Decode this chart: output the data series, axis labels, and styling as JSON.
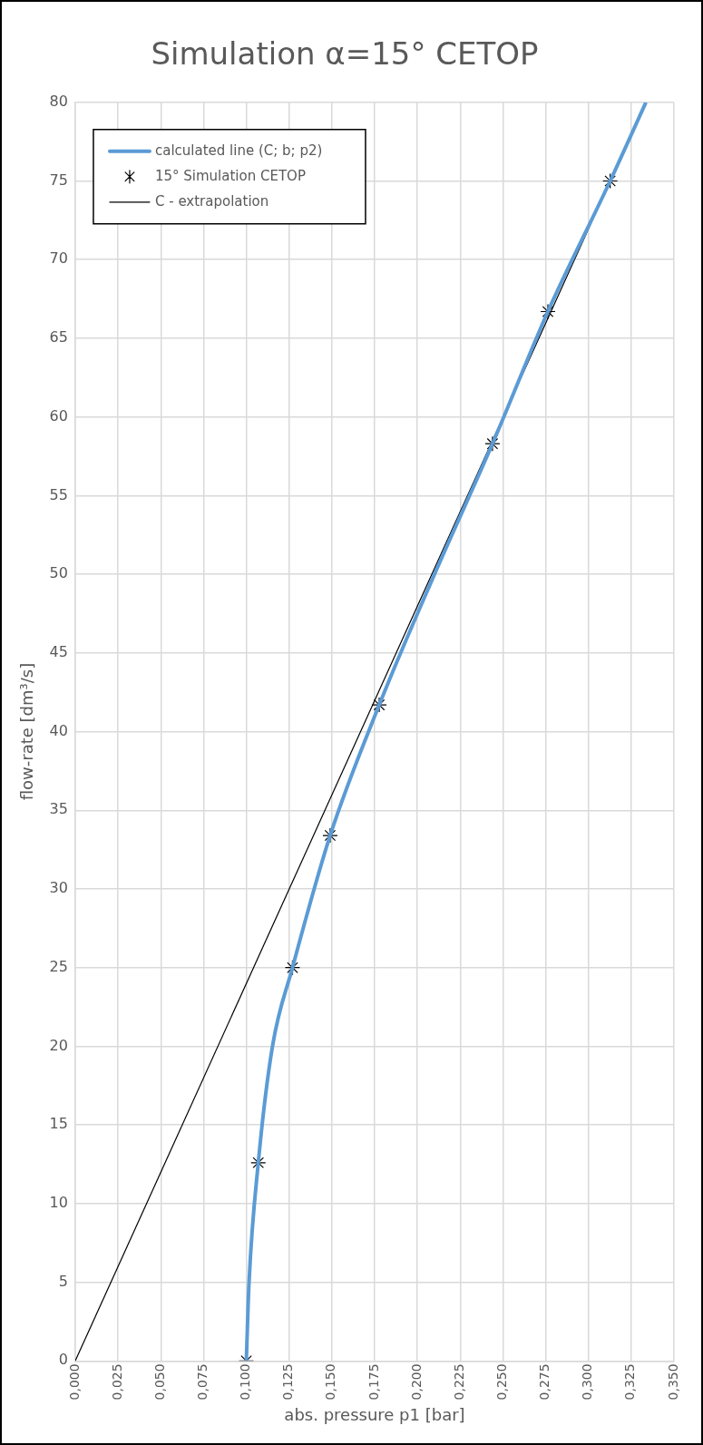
{
  "chart_data": {
    "type": "line",
    "title": "Simulation α=15° CETOP",
    "xlabel": "abs. pressure p1 [bar]",
    "ylabel": "flow-rate [dm³/s]",
    "series": [
      {
        "name": "calculated line (C; b; p2)",
        "type": "line",
        "color": "#5b9bd5",
        "marker": "none",
        "x": [
          0.1,
          0.1016,
          0.107,
          0.1153,
          0.127,
          0.149,
          0.1777,
          0.2096,
          0.2439,
          0.2763,
          0.3127,
          0.3336
        ],
        "values": [
          0,
          5.0,
          12.6,
          20.0,
          25.0,
          33.4,
          41.7,
          49.9,
          58.3,
          66.7,
          75.0,
          80
        ]
      },
      {
        "name": "15° Simulation CETOP",
        "type": "scatter",
        "color": "#000000",
        "marker": "cross",
        "x": [
          0.1,
          0.107,
          0.127,
          0.149,
          0.1777,
          0.2439,
          0.2763,
          0.3127
        ],
        "values": [
          0,
          12.6,
          25.0,
          33.4,
          41.7,
          58.3,
          66.7,
          75.0
        ]
      },
      {
        "name": "C - extrapolation",
        "type": "line",
        "color": "#000000",
        "marker": "none",
        "x": [
          0,
          0.3127
        ],
        "values": [
          0,
          75.0
        ]
      }
    ],
    "xlim": [
      0,
      0.35
    ],
    "ylim": [
      0,
      80
    ],
    "xticks": [
      {
        "value": 0,
        "label": "0,000"
      },
      {
        "value": 0.025,
        "label": "0,025"
      },
      {
        "value": 0.05,
        "label": "0,050"
      },
      {
        "value": 0.075,
        "label": "0,075"
      },
      {
        "value": 0.1,
        "label": "0,100"
      },
      {
        "value": 0.125,
        "label": "0,125"
      },
      {
        "value": 0.15,
        "label": "0,150"
      },
      {
        "value": 0.175,
        "label": "0,175"
      },
      {
        "value": 0.2,
        "label": "0,200"
      },
      {
        "value": 0.225,
        "label": "0,225"
      },
      {
        "value": 0.25,
        "label": "0,250"
      },
      {
        "value": 0.275,
        "label": "0,275"
      },
      {
        "value": 0.3,
        "label": "0,300"
      },
      {
        "value": 0.325,
        "label": "0,325"
      },
      {
        "value": 0.35,
        "label": "0,350"
      }
    ],
    "yticks": [
      0,
      5,
      10,
      15,
      20,
      25,
      30,
      35,
      40,
      45,
      50,
      55,
      60,
      65,
      70,
      75,
      80
    ],
    "grid": true,
    "legend": "top left"
  }
}
